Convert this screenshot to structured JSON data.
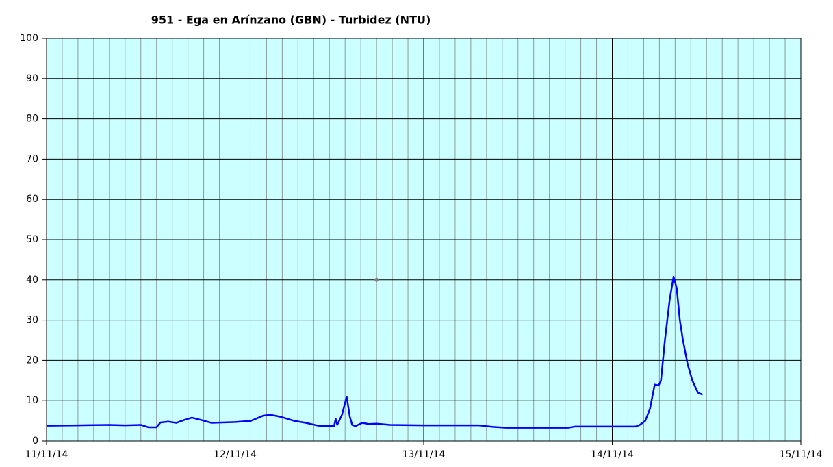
{
  "chart_data": {
    "type": "line",
    "title": "951 - Ega en Arínzano (GBN) - Turbidez (NTU)",
    "x": [
      "2014-11-11T00:00",
      "2014-11-11T04:00",
      "2014-11-11T08:00",
      "2014-11-11T10:00",
      "2014-11-11T12:00",
      "2014-11-11T13:00",
      "2014-11-11T14:00",
      "2014-11-11T14:30",
      "2014-11-11T15:30",
      "2014-11-11T16:30",
      "2014-11-11T17:30",
      "2014-11-11T18:30",
      "2014-11-11T19:30",
      "2014-11-11T21:00",
      "2014-11-12T00:00",
      "2014-11-12T02:00",
      "2014-11-12T03:36",
      "2014-11-12T04:30",
      "2014-11-12T05:48",
      "2014-11-12T07:30",
      "2014-11-12T09:00",
      "2014-11-12T10:36",
      "2014-11-12T12:36",
      "2014-11-12T12:48",
      "2014-11-12T13:00",
      "2014-11-12T13:36",
      "2014-11-12T14:12",
      "2014-11-12T14:36",
      "2014-11-12T14:54",
      "2014-11-12T15:18",
      "2014-11-12T16:12",
      "2014-11-12T17:00",
      "2014-11-12T18:00",
      "2014-11-12T19:42",
      "2014-11-13T00:00",
      "2014-11-13T07:00",
      "2014-11-13T08:48",
      "2014-11-13T10:30",
      "2014-11-13T18:24",
      "2014-11-13T19:18",
      "2014-11-14T03:00",
      "2014-11-14T03:30",
      "2014-11-14T04:12",
      "2014-11-14T04:48",
      "2014-11-14T05:24",
      "2014-11-14T05:54",
      "2014-11-14T06:12",
      "2014-11-14T06:42",
      "2014-11-14T07:18",
      "2014-11-14T07:48",
      "2014-11-14T08:12",
      "2014-11-14T08:36",
      "2014-11-14T09:00",
      "2014-11-14T09:36",
      "2014-11-14T10:12",
      "2014-11-14T10:54",
      "2014-11-14T11:30"
    ],
    "series": [
      {
        "color": "#0000ff",
        "values": [
          3.8,
          3.9,
          4.0,
          3.9,
          4.0,
          3.4,
          3.4,
          4.6,
          4.8,
          4.5,
          5.2,
          5.8,
          5.3,
          4.5,
          4.7,
          5.0,
          6.3,
          6.5,
          6.0,
          5.0,
          4.5,
          3.8,
          3.7,
          5.5,
          4.0,
          6.5,
          11.0,
          6.0,
          4.0,
          3.7,
          4.5,
          4.2,
          4.3,
          4.0,
          3.9,
          3.9,
          3.5,
          3.3,
          3.3,
          3.6,
          3.6,
          4.0,
          5.0,
          8.0,
          14.0,
          13.8,
          15.0,
          25.0,
          35.0,
          40.8,
          38.0,
          30.0,
          25.0,
          19.0,
          15.0,
          12.0,
          11.5
        ]
      }
    ],
    "markers": {
      "color": "#808080",
      "x": [
        "2014-11-12T18:00"
      ],
      "values": [
        40
      ]
    },
    "xlim": [
      "2014-11-11T00:00",
      "2014-11-15T00:00"
    ],
    "xticks": [
      {
        "value": "2014-11-11T00:00",
        "label": "11/11/14"
      },
      {
        "value": "2014-11-12T00:00",
        "label": "12/11/14"
      },
      {
        "value": "2014-11-13T00:00",
        "label": "13/11/14"
      },
      {
        "value": "2014-11-14T00:00",
        "label": "14/11/14"
      },
      {
        "value": "2014-11-15T00:00",
        "label": "15/11/14"
      }
    ],
    "minor_grid_hours": 2,
    "ylim": [
      0,
      100
    ],
    "yticks": [
      0,
      10,
      20,
      30,
      40,
      50,
      60,
      70,
      80,
      90,
      100
    ],
    "grid": true,
    "background": "#ccffff"
  }
}
